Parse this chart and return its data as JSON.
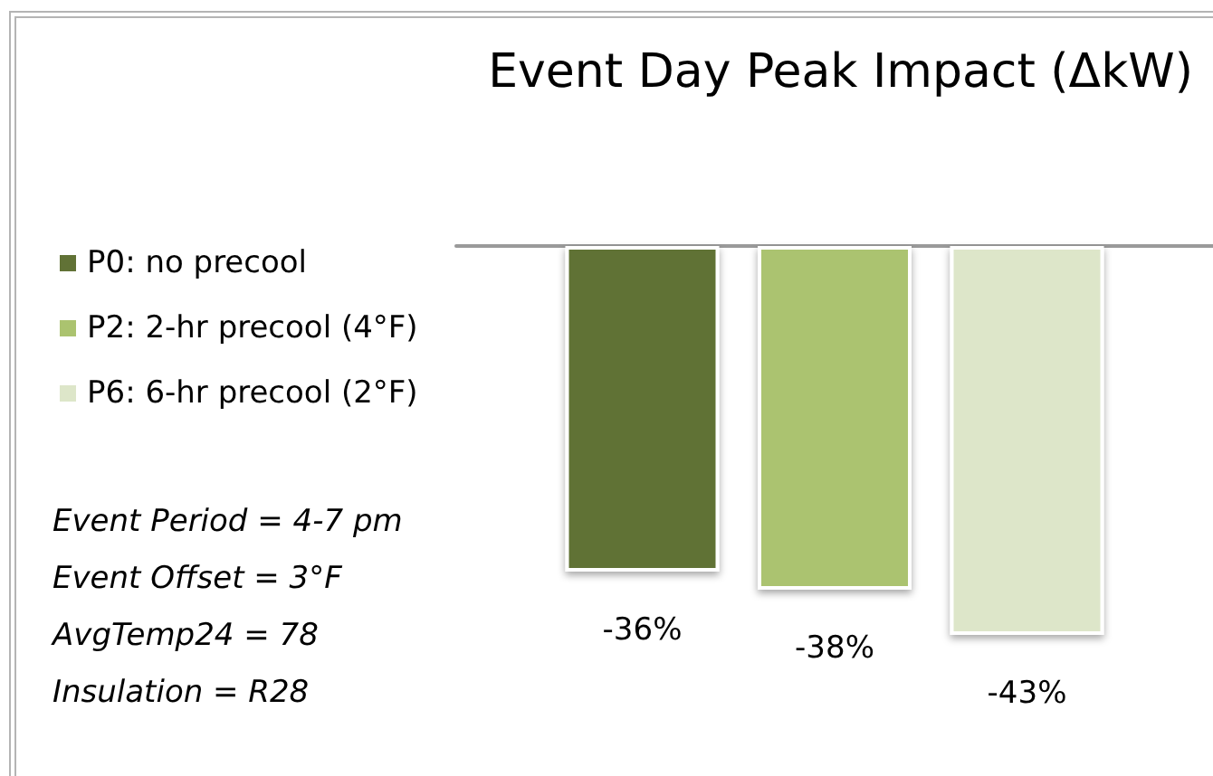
{
  "chart_data": {
    "type": "bar",
    "title": "Event Day Peak Impact (ΔkW)",
    "categories": [
      null
    ],
    "series": [
      {
        "name": "P0: no precool",
        "color": "#617236",
        "values": [
          -36
        ],
        "value_labels": [
          "-36%"
        ]
      },
      {
        "name": "P2: 2-hr precool (4°F)",
        "color": "#abc36f",
        "values": [
          -38
        ],
        "value_labels": [
          "-38%"
        ]
      },
      {
        "name": "P6: 6-hr precool (2°F)",
        "color": "#dde6c9",
        "values": [
          -43
        ],
        "value_labels": [
          "-43%"
        ]
      }
    ],
    "legend": "left",
    "annotations": [
      "Event Period = 4-7 pm",
      "Event Offset = 3°F",
      "AvgTemp24 = 78",
      "Insulation = R28"
    ]
  }
}
